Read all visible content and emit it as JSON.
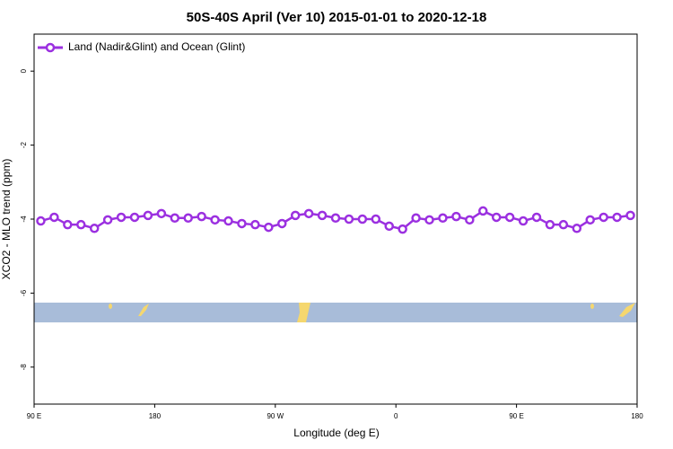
{
  "chart_data": {
    "type": "line",
    "title": "50S-40S April (Ver 10)   2015-01-01 to 2020-12-18",
    "xlabel": "Longitude (deg E)",
    "ylabel": "XCO2 - MLO trend (ppm)",
    "x": [
      95,
      105,
      115,
      125,
      135,
      145,
      155,
      165,
      175,
      185,
      195,
      205,
      215,
      225,
      235,
      245,
      255,
      265,
      275,
      285,
      295,
      305,
      315,
      325,
      335,
      345,
      355,
      365,
      375,
      385,
      395,
      405,
      415,
      425,
      435,
      445,
      455,
      465,
      475,
      485,
      495,
      505,
      515,
      525,
      535
    ],
    "series": [
      {
        "name": "Land (Nadir&Glint) and Ocean (Glint)",
        "color": "#9b30e0",
        "values": [
          -4.05,
          -3.95,
          -4.15,
          -4.15,
          -4.25,
          -4.02,
          -3.95,
          -3.95,
          -3.9,
          -3.85,
          -3.97,
          -3.97,
          -3.93,
          -4.02,
          -4.05,
          -4.12,
          -4.15,
          -4.22,
          -4.12,
          -3.9,
          -3.85,
          -3.9,
          -3.97,
          -4.0,
          -4.0,
          -4.0,
          -4.19,
          -4.27,
          -3.97,
          -4.02,
          -3.97,
          -3.93,
          -4.02,
          -3.78,
          -3.95,
          -3.95,
          -4.05,
          -3.95,
          -4.15,
          -4.15,
          -4.25,
          -4.02,
          -3.95,
          -3.95,
          -3.9
        ]
      }
    ],
    "xlim": [
      90,
      540
    ],
    "xticks": [
      {
        "value": 90,
        "label": "90 E"
      },
      {
        "value": 180,
        "label": "180"
      },
      {
        "value": 270,
        "label": "90 W"
      },
      {
        "value": 360,
        "label": "0"
      },
      {
        "value": 450,
        "label": "90 E"
      },
      {
        "value": 540,
        "label": "180"
      }
    ],
    "ylim": [
      -9,
      1
    ],
    "yticks": [
      0,
      -2,
      -4,
      -6,
      -8
    ],
    "legend": "top-left"
  }
}
